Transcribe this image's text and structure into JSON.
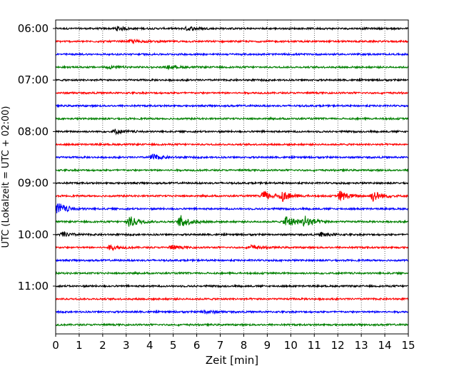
{
  "chart_data": {
    "type": "line",
    "title": "",
    "xlabel": "Zeit  [min]",
    "ylabel": "UTC (Lokalzeit = UTC + 02:00)",
    "xlim": [
      0,
      15
    ],
    "x_ticks": [
      0,
      1,
      2,
      3,
      4,
      5,
      6,
      7,
      8,
      9,
      10,
      11,
      12,
      13,
      14,
      15
    ],
    "x_tick_labels": [
      "0",
      "1",
      "2",
      "3",
      "4",
      "5",
      "6",
      "7",
      "8",
      "9",
      "10",
      "11",
      "12",
      "13",
      "14",
      "15"
    ],
    "y_tick_labels": [
      "06:00",
      "07:00",
      "08:00",
      "09:00",
      "10:00",
      "11:00"
    ],
    "trace_start_times": [
      "06:00",
      "06:15",
      "06:30",
      "06:45",
      "07:00",
      "07:15",
      "07:30",
      "07:45",
      "08:00",
      "08:15",
      "08:30",
      "08:45",
      "09:00",
      "09:15",
      "09:30",
      "09:45",
      "10:00",
      "10:15",
      "10:30",
      "10:45",
      "11:00",
      "11:15",
      "11:30",
      "11:45"
    ],
    "trace_minutes": 15,
    "color_cycle": [
      "#000000",
      "#ff0000",
      "#0000ff",
      "#008000"
    ],
    "grid": "vertical-dotted",
    "events": [
      {
        "trace": "06:00",
        "minutes": [
          2.6,
          5.6
        ],
        "amplitude": 0.35
      },
      {
        "trace": "06:15",
        "minutes": [
          3.2
        ],
        "amplitude": 0.3
      },
      {
        "trace": "06:45",
        "minutes": [
          2.2,
          4.8
        ],
        "amplitude": 0.25
      },
      {
        "trace": "08:00",
        "minutes": [
          2.5
        ],
        "amplitude": 0.4
      },
      {
        "trace": "08:30",
        "minutes": [
          4.1
        ],
        "amplitude": 0.55
      },
      {
        "trace": "09:15",
        "minutes": [
          8.8,
          9.6,
          12.1,
          13.5
        ],
        "amplitude": 0.9
      },
      {
        "trace": "09:30",
        "minutes": [
          0.1
        ],
        "amplitude": 1.1
      },
      {
        "trace": "09:45",
        "minutes": [
          3.1,
          5.3,
          9.8,
          10.6
        ],
        "amplitude": 1.1
      },
      {
        "trace": "10:00",
        "minutes": [
          0.3,
          11.3
        ],
        "amplitude": 0.4
      },
      {
        "trace": "10:15",
        "minutes": [
          2.3,
          4.9,
          8.3
        ],
        "amplitude": 0.4
      },
      {
        "trace": "11:30",
        "minutes": [
          6.3
        ],
        "amplitude": 0.3
      }
    ]
  }
}
